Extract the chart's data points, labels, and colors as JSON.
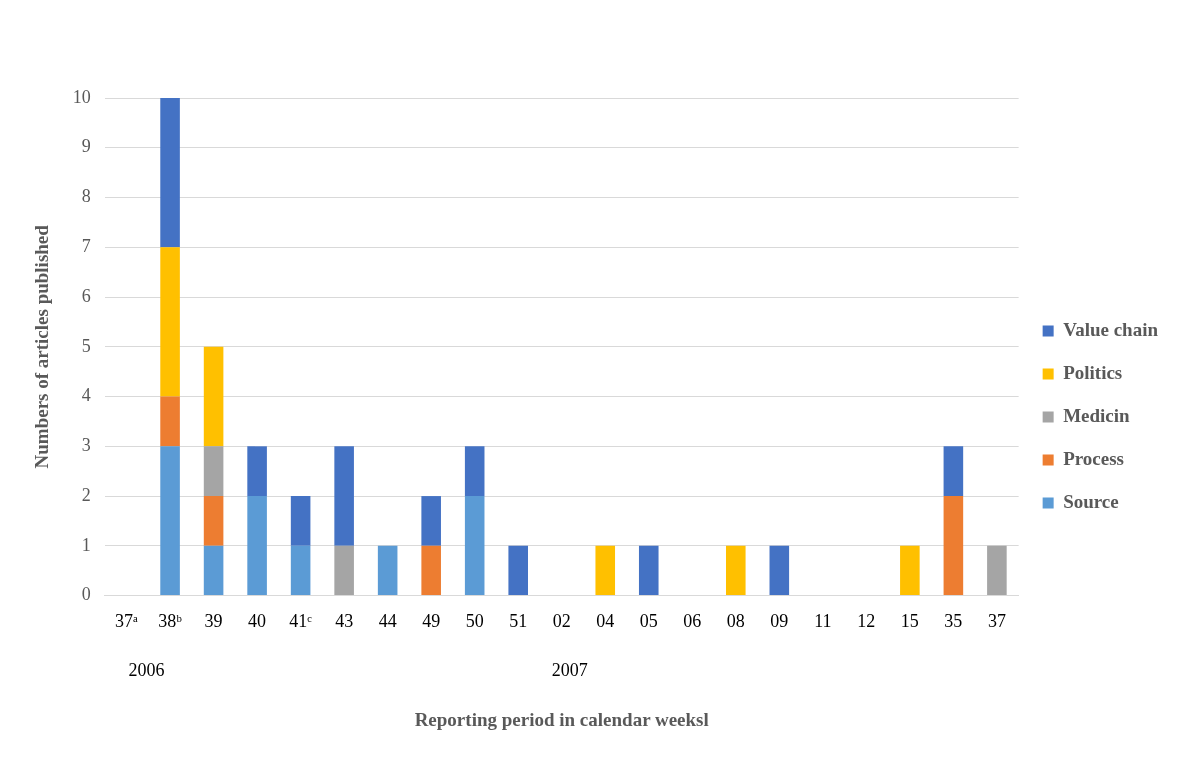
{
  "chart_data": {
    "type": "bar",
    "stacked": true,
    "xlabel": "Reporting period in calendar weeksl",
    "ylabel": "Numbers of articles published",
    "categories": [
      "37ᵃ",
      "38ᵇ",
      "39",
      "40",
      "41ᶜ",
      "43",
      "44",
      "49",
      "50",
      "51",
      "02",
      "04",
      "05",
      "06",
      "08",
      "09",
      "11",
      "12",
      "15",
      "35",
      "37"
    ],
    "series": [
      {
        "name": "Source",
        "color": "#5b9bd5",
        "values": [
          0,
          3,
          1,
          2,
          1,
          0,
          1,
          0,
          2,
          0,
          0,
          0,
          0,
          0,
          0,
          0,
          0,
          0,
          0,
          0,
          0
        ]
      },
      {
        "name": "Process",
        "color": "#ed7d31",
        "values": [
          0,
          1,
          1,
          0,
          0,
          0,
          0,
          1,
          0,
          0,
          0,
          0,
          0,
          0,
          0,
          0,
          0,
          0,
          0,
          2,
          0
        ]
      },
      {
        "name": "Medicin",
        "color": "#a5a5a5",
        "values": [
          0,
          0,
          1,
          0,
          0,
          1,
          0,
          0,
          0,
          0,
          0,
          0,
          0,
          0,
          0,
          0,
          0,
          0,
          0,
          0,
          1
        ]
      },
      {
        "name": "Politics",
        "color": "#ffc000",
        "values": [
          0,
          3,
          2,
          0,
          0,
          0,
          0,
          0,
          0,
          0,
          0,
          1,
          0,
          0,
          1,
          0,
          0,
          0,
          1,
          0,
          0
        ]
      },
      {
        "name": "Value chain",
        "color": "#4472c4",
        "values": [
          0,
          3,
          0,
          1,
          1,
          2,
          0,
          1,
          1,
          1,
          0,
          0,
          1,
          0,
          0,
          1,
          0,
          0,
          0,
          1,
          0
        ]
      }
    ],
    "ylim": [
      0,
      10
    ],
    "yticks": [
      0,
      1,
      2,
      3,
      4,
      5,
      6,
      7,
      8,
      9,
      10
    ],
    "grid": "y",
    "legend": "right",
    "annotations": [
      "2006",
      "2007"
    ]
  }
}
